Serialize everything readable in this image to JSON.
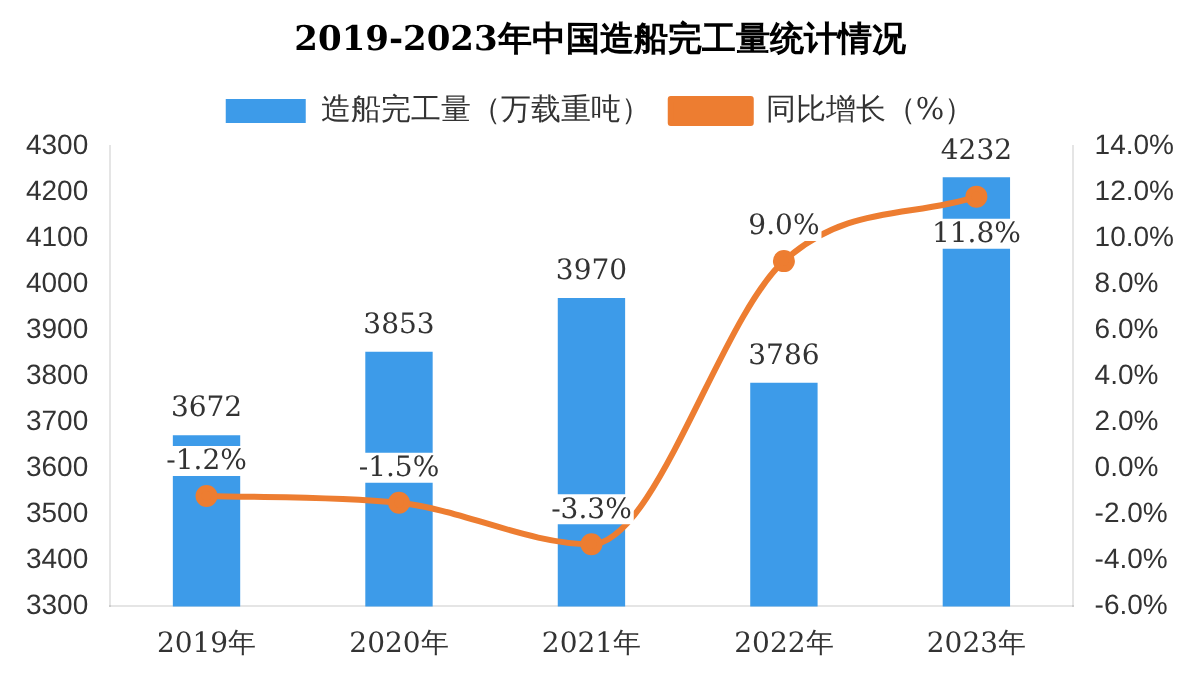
{
  "chart_data": {
    "type": "bar",
    "title": "2019-2023年中国造船完工量统计情况",
    "categories": [
      "2019年",
      "2020年",
      "2021年",
      "2022年",
      "2023年"
    ],
    "series": [
      {
        "name": "造船完工量（万载重吨）",
        "color": "#3d9be9",
        "values": [
          3672,
          3853,
          3970,
          3786,
          4232
        ],
        "value_labels": [
          "3672",
          "3853",
          "3970",
          "3786",
          "4232"
        ]
      },
      {
        "name": "同比增长（%）",
        "type": "line",
        "axis": "y2",
        "color": "#ed7d31",
        "marker": "circle",
        "values": [
          -1.2,
          -1.5,
          -3.3,
          9.0,
          11.8
        ],
        "value_labels": [
          "-1.2%",
          "-1.5%",
          "-3.3%",
          "9.0%",
          "11.8%"
        ]
      }
    ],
    "ylim": [
      3300,
      4300
    ],
    "yticks": [
      3300,
      3400,
      3500,
      3600,
      3700,
      3800,
      3900,
      4000,
      4100,
      4200,
      4300
    ],
    "y2lim": [
      -6,
      14
    ],
    "y2ticks": [
      {
        "value": -6,
        "label": "-6.0%"
      },
      {
        "value": -4,
        "label": "-4.0%"
      },
      {
        "value": -2,
        "label": "-2.0%"
      },
      {
        "value": 0,
        "label": "0.0%"
      },
      {
        "value": 2,
        "label": "2.0%"
      },
      {
        "value": 4,
        "label": "4.0%"
      },
      {
        "value": 6,
        "label": "6.0%"
      },
      {
        "value": 8,
        "label": "8.0%"
      },
      {
        "value": 10,
        "label": "10.0%"
      },
      {
        "value": 12,
        "label": "12.0%"
      },
      {
        "value": 14,
        "label": "14.0%"
      }
    ],
    "grid": false,
    "legend": "top"
  }
}
